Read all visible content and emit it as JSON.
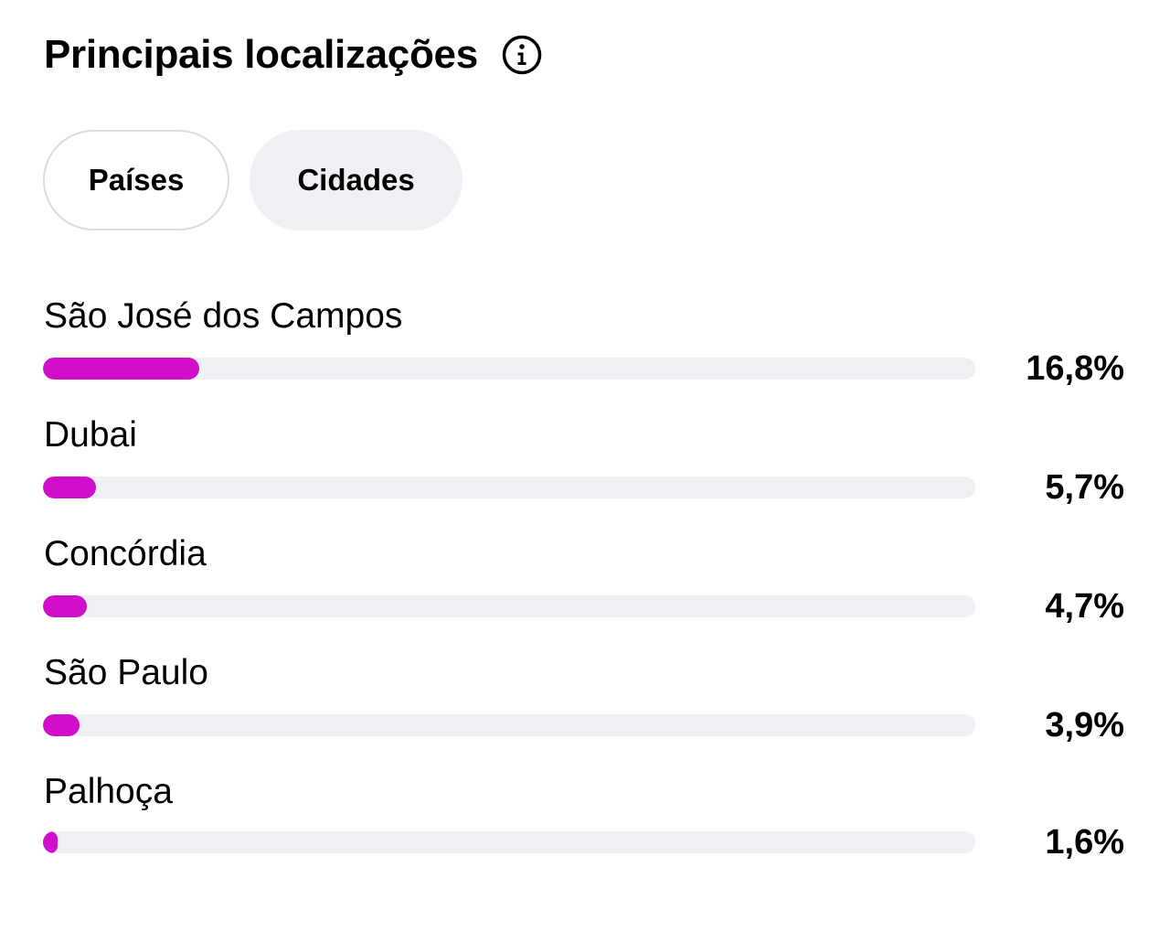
{
  "header": {
    "title": "Principais localizações",
    "info_icon": "info-icon"
  },
  "tabs": [
    {
      "label": "Países",
      "style": "outlined"
    },
    {
      "label": "Cidades",
      "style": "filled"
    }
  ],
  "colors": {
    "bar_fill": "#d10ec9",
    "bar_track": "#eff0f3"
  },
  "locations": [
    {
      "name": "São José dos Campos",
      "percent_label": "16,8%",
      "percent": 16.8
    },
    {
      "name": "Dubai",
      "percent_label": "5,7%",
      "percent": 5.7
    },
    {
      "name": "Concórdia",
      "percent_label": "4,7%",
      "percent": 4.7
    },
    {
      "name": "São Paulo",
      "percent_label": "3,9%",
      "percent": 3.9
    },
    {
      "name": "Palhoça",
      "percent_label": "1,6%",
      "percent": 1.6
    }
  ]
}
